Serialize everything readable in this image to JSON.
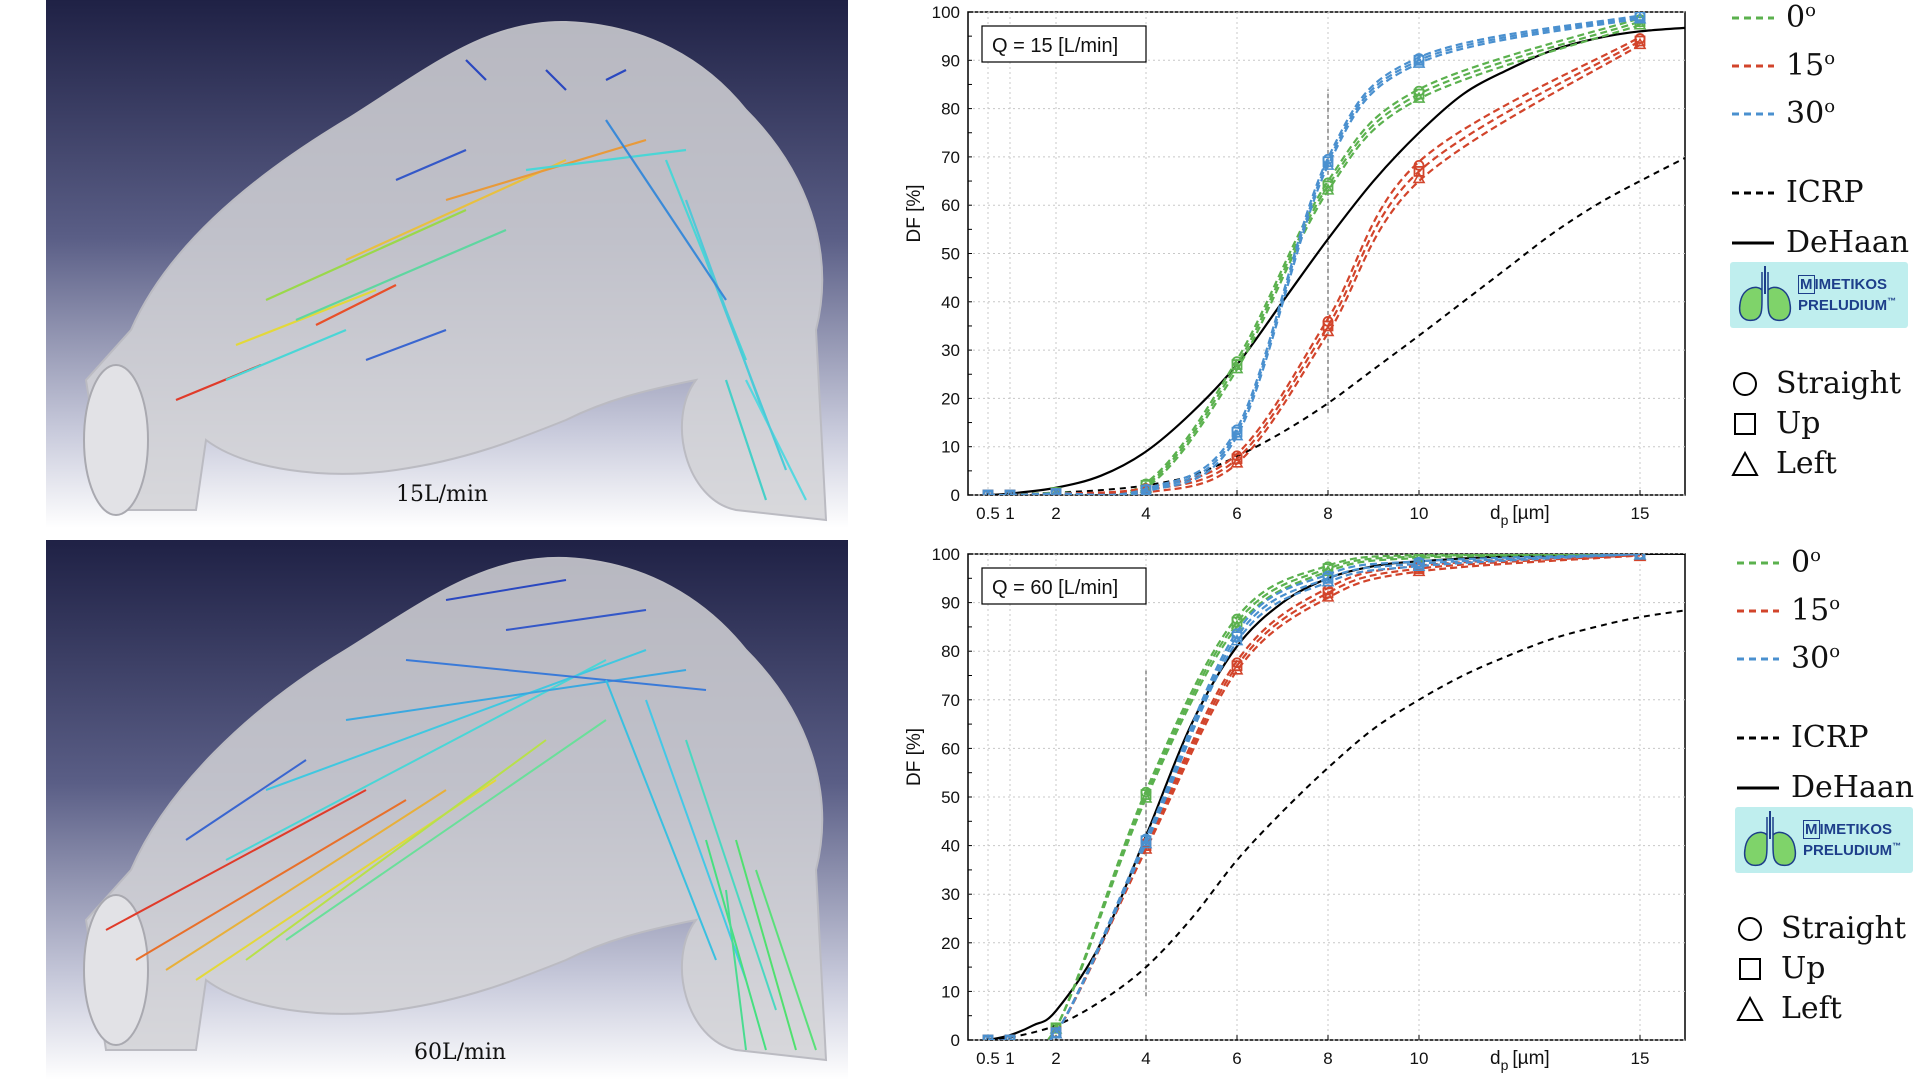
{
  "simulations": [
    {
      "label": "15L/min"
    },
    {
      "label": "60L/min"
    }
  ],
  "legend": {
    "angles": [
      {
        "label": "0",
        "sup": "o",
        "color": "#5bb14e"
      },
      {
        "label": "15",
        "sup": "o",
        "color": "#d2442b"
      },
      {
        "label": "30",
        "sup": "o",
        "color": "#4a90cf"
      }
    ],
    "references": [
      {
        "label": "ICRP",
        "style": "dashed",
        "color": "#000000"
      },
      {
        "label": "DeHaan",
        "style": "solid",
        "color": "#000000"
      }
    ],
    "logo": {
      "line1": "IMETIKOS",
      "line1_prefix": "M",
      "line2": "PRELUDIUM",
      "tm": "™"
    },
    "markers": [
      {
        "label": "Straight",
        "shape": "circle"
      },
      {
        "label": "Up",
        "shape": "square"
      },
      {
        "label": "Left",
        "shape": "triangle"
      }
    ]
  },
  "chart_data": [
    {
      "type": "line",
      "annotation": "Q = 15 [L/min]",
      "ylabel": "DF [%]",
      "xlabel": "dp [µm]",
      "xlabel_main": "d",
      "xlabel_sub": "p",
      "xlabel_unit": "[µm]",
      "xticks": [
        "0.5",
        "1",
        "2",
        "4",
        "6",
        "8",
        "10",
        "15"
      ],
      "xtick_values": [
        0.5,
        1,
        2,
        4,
        6,
        8,
        10,
        15
      ],
      "yticks": [
        "0",
        "10",
        "20",
        "30",
        "40",
        "50",
        "60",
        "70",
        "80",
        "90",
        "100"
      ],
      "ylim": [
        0,
        100
      ],
      "grid": true,
      "vline_x": 8,
      "vline_y": [
        17,
        84
      ],
      "reference": {
        "ICRP": {
          "x": [
            0.5,
            1,
            2,
            3,
            4,
            5,
            6,
            7,
            8,
            9,
            10,
            11,
            12,
            13,
            14,
            15,
            16.5
          ],
          "y": [
            0,
            0.1,
            0.5,
            1,
            2,
            4,
            8,
            13,
            19,
            26,
            33,
            40,
            47,
            54,
            60,
            65,
            72
          ]
        },
        "DeHaan": {
          "x": [
            0.5,
            1,
            2,
            3,
            4,
            5,
            6,
            7,
            8,
            9,
            10,
            11,
            12,
            13,
            14,
            15,
            16.5
          ],
          "y": [
            0,
            0.3,
            1.5,
            4,
            9,
            17,
            27,
            40,
            53,
            65,
            75,
            83,
            88,
            92,
            94.5,
            96,
            97
          ]
        }
      },
      "series": [
        {
          "name": "0°",
          "color": "#5bb14e",
          "x": [
            0.5,
            1,
            2,
            4,
            6,
            8,
            10,
            15
          ],
          "y": [
            0,
            0,
            0.5,
            2,
            27,
            64,
            83,
            98
          ],
          "spread": [
            0,
            0,
            0,
            0.5,
            1,
            1,
            1,
            0.7
          ]
        },
        {
          "name": "15°",
          "color": "#d2442b",
          "x": [
            0.5,
            1,
            2,
            4,
            6,
            8,
            10,
            15
          ],
          "y": [
            0,
            0,
            0.3,
            1,
            7.5,
            35,
            67,
            94
          ],
          "spread": [
            0,
            0,
            0,
            0.5,
            1,
            1.5,
            2,
            0.8
          ]
        },
        {
          "name": "30°",
          "color": "#4a90cf",
          "x": [
            0.5,
            1,
            2,
            4,
            6,
            8,
            10,
            15
          ],
          "y": [
            0,
            0,
            0.3,
            1,
            13,
            69,
            90,
            99
          ],
          "spread": [
            0,
            0,
            0,
            0.3,
            0.8,
            0.8,
            0.6,
            0.3
          ]
        }
      ]
    },
    {
      "type": "line",
      "annotation": "Q = 60 [L/min]",
      "ylabel": "DF [%]",
      "xlabel": "dp [µm]",
      "xlabel_main": "d",
      "xlabel_sub": "p",
      "xlabel_unit": "[µm]",
      "xticks": [
        "0.5",
        "1",
        "2",
        "4",
        "6",
        "8",
        "10",
        "15"
      ],
      "xtick_values": [
        0.5,
        1,
        2,
        4,
        6,
        8,
        10,
        15
      ],
      "yticks": [
        "0",
        "10",
        "20",
        "30",
        "40",
        "50",
        "60",
        "70",
        "80",
        "90",
        "100"
      ],
      "ylim": [
        0,
        100
      ],
      "grid": true,
      "vline_x": 4,
      "vline_y": [
        9,
        76
      ],
      "reference": {
        "ICRP": {
          "x": [
            0.5,
            1,
            2,
            3,
            4,
            5,
            6,
            7,
            8,
            9,
            10,
            11,
            12,
            13,
            14,
            15,
            16.5
          ],
          "y": [
            0,
            0.5,
            3,
            8,
            15,
            25,
            37,
            47,
            56,
            64,
            70,
            75,
            79,
            82.5,
            85,
            87,
            89
          ]
        },
        "DeHaan": {
          "x": [
            0.5,
            1,
            1.5,
            2,
            3,
            4,
            5,
            6,
            7,
            8,
            9,
            10,
            12,
            15,
            16.5
          ],
          "y": [
            0,
            1,
            3,
            6,
            20,
            42,
            65,
            81,
            90,
            95,
            97.5,
            98.5,
            99.5,
            100,
            100
          ]
        }
      },
      "series": [
        {
          "name": "0°",
          "color": "#5bb14e",
          "x": [
            0.5,
            1,
            2,
            4,
            6,
            8,
            10,
            15
          ],
          "y": [
            0,
            0,
            2.5,
            50.5,
            86,
            97,
            99.5,
            100
          ],
          "spread": [
            0,
            0,
            0,
            0.8,
            1,
            0.6,
            0.3,
            0
          ]
        },
        {
          "name": "15°",
          "color": "#d2442b",
          "x": [
            0.5,
            1,
            2,
            4,
            6,
            8,
            10,
            15
          ],
          "y": [
            0,
            0,
            1.5,
            40,
            77,
            92,
            97,
            99.8
          ],
          "spread": [
            0,
            0,
            0,
            0.8,
            1,
            1,
            0.6,
            0.1
          ]
        },
        {
          "name": "30°",
          "color": "#4a90cf",
          "x": [
            0.5,
            1,
            2,
            4,
            6,
            8,
            10,
            15
          ],
          "y": [
            0,
            0,
            1.5,
            41,
            83,
            95,
            98,
            100
          ],
          "spread": [
            0,
            0,
            0,
            0.6,
            1,
            0.8,
            0.5,
            0
          ]
        }
      ]
    }
  ]
}
